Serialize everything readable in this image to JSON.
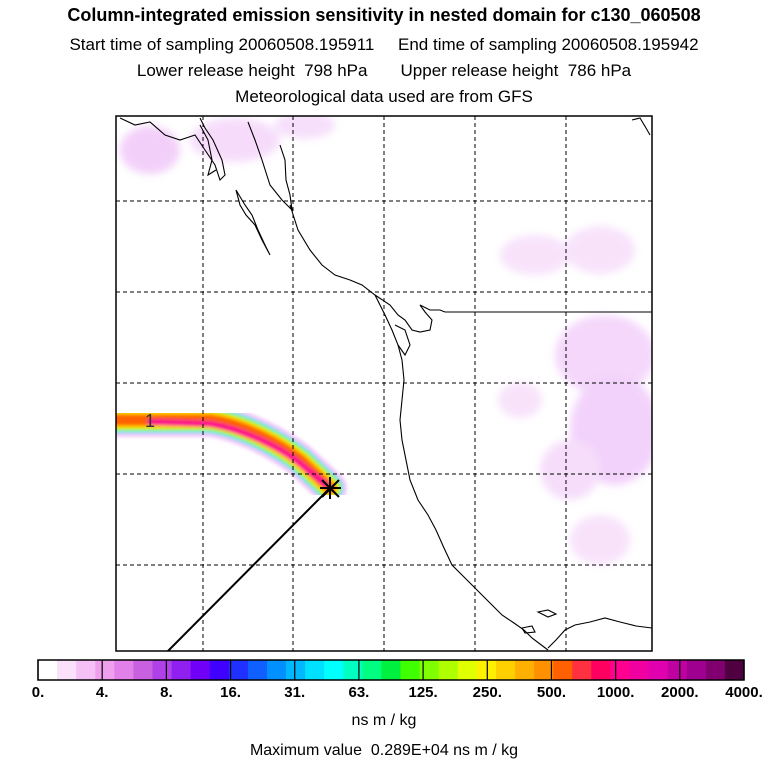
{
  "header": {
    "title": "Column-integrated emission sensitivity in nested domain for c130_060508",
    "sampling_line": "Start time of sampling 20060508.195911     End time of sampling 20060508.195942",
    "height_line": "Lower release height  798 hPa       Upper release height  786 hPa",
    "met_line": "Meteorological data used are from GFS"
  },
  "map": {
    "plume_label": "1",
    "colors": {
      "coastline": "#000000",
      "grid": "#000000",
      "plume_core": "#ff0090",
      "background_sensitivity": "#f0c0f8"
    }
  },
  "colorbar": {
    "tick_labels": [
      "0.",
      "4.",
      "8.",
      "16.",
      "31.",
      "63.",
      "125.",
      "250.",
      "500.",
      "1000.",
      "2000.",
      "4000."
    ],
    "colors": [
      "#ffffff",
      "#fbe0fb",
      "#f5c0f5",
      "#eea0ee",
      "#e080e8",
      "#c860e0",
      "#b040e8",
      "#9020f0",
      "#7000f8",
      "#4000ff",
      "#2030ff",
      "#1060ff",
      "#0090ff",
      "#00b8ff",
      "#00e0ff",
      "#00ffff",
      "#00ffc0",
      "#00ff80",
      "#00f040",
      "#40ff00",
      "#80ff00",
      "#b0ff00",
      "#e0ff00",
      "#fff000",
      "#ffd000",
      "#ffb000",
      "#ff9000",
      "#ff6000",
      "#ff3040",
      "#ff0060",
      "#ff0090",
      "#f000a0",
      "#e000b0",
      "#c000a0",
      "#a00090",
      "#800070",
      "#500040"
    ],
    "units": "ns m / kg",
    "max_value": "Maximum value  0.289E+04 ns m / kg"
  }
}
